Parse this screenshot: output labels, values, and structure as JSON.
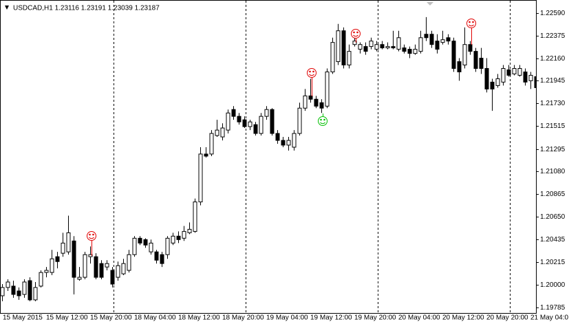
{
  "chart_data": {
    "type": "candlestick",
    "title": "USDCAD,H1  1.23116 1.23191 1.23039 1.23187",
    "bull_color": "#ffffff",
    "bear_color": "#000000",
    "wick_color": "#000000",
    "categories": [
      "15 May 2015",
      null,
      null,
      null,
      null,
      null,
      null,
      null,
      "15 May 12:00",
      null,
      null,
      null,
      null,
      null,
      null,
      null,
      "15 May 20:00",
      null,
      null,
      null,
      null,
      null,
      null,
      null,
      "18 May 04:00",
      null,
      null,
      null,
      null,
      null,
      null,
      null,
      "18 May 12:00",
      null,
      null,
      null,
      null,
      null,
      null,
      null,
      "18 May 20:00",
      null,
      null,
      null,
      null,
      null,
      null,
      null,
      "19 May 04:00",
      null,
      null,
      null,
      null,
      null,
      null,
      null,
      "19 May 12:00",
      null,
      null,
      null,
      null,
      null,
      null,
      null,
      "19 May 20:00",
      null,
      null,
      null,
      null,
      null,
      null,
      null,
      "20 May 04:00",
      null,
      null,
      null,
      null,
      null,
      null,
      null,
      "20 May 12:00",
      null,
      null,
      null,
      null,
      null,
      null,
      null,
      "20 May 20:00",
      null,
      null,
      null,
      null,
      null,
      null,
      null,
      "21 May 04:0",
      null
    ],
    "open": [
      1.19897,
      1.19976,
      1.19989,
      1.19943,
      1.1991,
      1.20041,
      1.19858,
      1.19989,
      1.20119,
      1.20119,
      1.20269,
      1.20302,
      1.20315,
      1.20419,
      1.20054,
      1.20073,
      1.20269,
      1.20269,
      1.20204,
      1.20171,
      1.20139,
      1.20073,
      1.20106,
      1.20139,
      1.20289,
      1.20445,
      1.20432,
      1.20315,
      1.20315,
      1.20289,
      1.20289,
      1.20399,
      1.20465,
      1.20445,
      1.20497,
      1.2051,
      1.20791,
      1.21247,
      1.21247,
      1.21423,
      1.2141,
      1.21475,
      1.21671,
      1.21606,
      1.21573,
      1.21508,
      1.21527,
      1.21443,
      1.21606,
      1.21671,
      1.21443,
      1.21377,
      1.21332,
      1.21312,
      1.21443,
      1.21684,
      1.21801,
      1.21769,
      1.21736,
      1.21703,
      1.22029,
      1.22127,
      1.22421,
      1.22095,
      1.2229,
      1.22245,
      1.22271,
      1.22271,
      1.22245,
      1.2229,
      1.22258,
      1.22271,
      1.22245,
      1.22258,
      1.22245,
      1.22205,
      1.22225,
      1.22388,
      1.22388,
      1.22323,
      1.2231,
      1.22355,
      1.22323,
      1.22127,
      1.22095,
      1.2229,
      1.22225,
      1.2216,
      1.22062,
      1.21932,
      1.21899,
      1.21932,
      1.22049,
      1.2201,
      1.21997,
      1.22029,
      1.21945,
      1.21984
    ],
    "high": [
      1.20008,
      1.20054,
      1.20041,
      1.19976,
      1.20054,
      1.20073,
      1.20028,
      1.20139,
      1.20171,
      1.20334,
      1.20315,
      1.20497,
      1.2066,
      1.20465,
      1.20171,
      1.20315,
      1.20367,
      1.20302,
      1.20236,
      1.20236,
      1.20171,
      1.20223,
      1.20249,
      1.20334,
      1.20465,
      1.20465,
      1.20445,
      1.20432,
      1.20334,
      1.20315,
      1.20465,
      1.20497,
      1.2051,
      1.20562,
      1.20595,
      1.20823,
      1.21312,
      1.21312,
      1.21475,
      1.21573,
      1.2154,
      1.21671,
      1.21703,
      1.21638,
      1.21606,
      1.21573,
      1.21553,
      1.21638,
      1.21703,
      1.21684,
      1.21475,
      1.2141,
      1.2141,
      1.21475,
      1.21736,
      1.21866,
      1.21964,
      1.21801,
      1.21769,
      1.22062,
      1.22355,
      1.22486,
      1.22453,
      1.2229,
      1.22355,
      1.2231,
      1.2231,
      1.22355,
      1.22323,
      1.22323,
      1.2231,
      1.22421,
      1.22421,
      1.2229,
      1.22271,
      1.2229,
      1.22421,
      1.22551,
      1.22421,
      1.22388,
      1.22421,
      1.22388,
      1.22355,
      1.2216,
      1.22453,
      1.22323,
      1.22258,
      1.22258,
      1.2216,
      1.21964,
      1.2201,
      1.22095,
      1.22095,
      1.22095,
      1.22095,
      1.22062,
      1.22029,
      1.2201
    ],
    "low": [
      1.19845,
      1.19943,
      1.19878,
      1.19858,
      1.19878,
      1.19845,
      1.19845,
      1.19976,
      1.20073,
      1.20093,
      1.20158,
      1.20269,
      1.20289,
      1.1991,
      1.20041,
      1.20054,
      1.20204,
      1.20054,
      1.20054,
      1.20139,
      1.19976,
      1.20041,
      1.20093,
      1.20119,
      1.20269,
      1.2038,
      1.20354,
      1.20289,
      1.20204,
      1.20171,
      1.20249,
      1.2038,
      1.20399,
      1.20419,
      1.20484,
      1.20497,
      1.20758,
      1.21214,
      1.21227,
      1.2141,
      1.21377,
      1.21443,
      1.21573,
      1.21527,
      1.21495,
      1.21475,
      1.21423,
      1.21423,
      1.21573,
      1.21423,
      1.21345,
      1.21312,
      1.2128,
      1.2128,
      1.21423,
      1.21658,
      1.21736,
      1.21684,
      1.21638,
      1.21684,
      1.2201,
      1.22095,
      1.22062,
      1.22062,
      1.22271,
      1.22205,
      1.22192,
      1.22245,
      1.22225,
      1.22245,
      1.22245,
      1.22245,
      1.22225,
      1.22205,
      1.2216,
      1.22192,
      1.22205,
      1.22323,
      1.22258,
      1.22205,
      1.2229,
      1.2229,
      1.22029,
      1.21945,
      1.22062,
      1.22192,
      1.22029,
      1.2201,
      1.21834,
      1.21658,
      1.21879,
      1.21899,
      1.21984,
      1.21997,
      1.21984,
      1.21899,
      1.21866,
      1.21834
    ],
    "close": [
      1.19976,
      1.20028,
      1.1991,
      1.19897,
      1.20028,
      1.19858,
      1.19976,
      1.20119,
      1.20139,
      1.20249,
      1.20223,
      1.20399,
      1.20497,
      1.20073,
      1.20073,
      1.20289,
      1.20289,
      1.20073,
      1.20073,
      1.20204,
      1.20008,
      1.20184,
      1.20204,
      1.20289,
      1.20445,
      1.20399,
      1.2038,
      1.20399,
      1.20236,
      1.20204,
      1.20445,
      1.20465,
      1.20432,
      1.2051,
      1.2053,
      1.20791,
      1.21247,
      1.21227,
      1.21443,
      1.21475,
      1.21495,
      1.21638,
      1.21606,
      1.21553,
      1.21508,
      1.21553,
      1.21443,
      1.21606,
      1.21671,
      1.21443,
      1.21377,
      1.21332,
      1.21377,
      1.21443,
      1.21684,
      1.21801,
      1.21769,
      1.21703,
      1.21684,
      1.22029,
      1.2231,
      1.22421,
      1.22095,
      1.22225,
      1.22323,
      1.2229,
      1.22225,
      1.22323,
      1.2229,
      1.22258,
      1.22271,
      1.22258,
      1.22355,
      1.22225,
      1.22205,
      1.22245,
      1.22355,
      1.22355,
      1.2229,
      1.22245,
      1.22336,
      1.22323,
      1.22062,
      1.22029,
      1.2229,
      1.22225,
      1.22062,
      1.22062,
      1.21866,
      1.21866,
      1.21964,
      1.22062,
      1.21997,
      1.22062,
      1.22062,
      1.21932,
      1.21997,
      1.21879
    ],
    "ylim": [
      1.19733,
      1.22714
    ],
    "yticks": [
      {
        "value": 1.2259,
        "label": "1.22590"
      },
      1.22375,
      {
        "value": 1.2216,
        "label": "1.22160"
      },
      1.21945,
      {
        "value": 1.2173,
        "label": "1.21730"
      },
      1.21515,
      1.21295,
      {
        "value": 1.2108,
        "label": "1.21080"
      },
      1.20865,
      {
        "value": 1.2065,
        "label": "1.20650"
      },
      1.20435,
      1.20215,
      {
        "value": 1.2,
        "label": "1.20000"
      },
      1.19785
    ]
  }
}
